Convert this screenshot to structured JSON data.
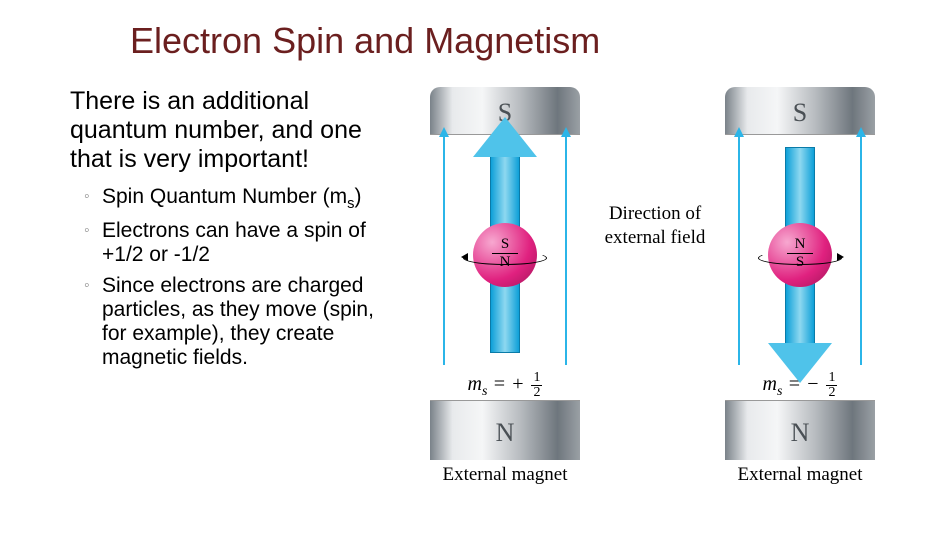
{
  "title": {
    "text": "Electron Spin and Magnetism",
    "color": "#6b1f1f",
    "fontsize": 36
  },
  "intro": "There is an additional quantum number, and one that is very important!",
  "bullets": [
    {
      "html": "Spin Quantum Number (m<sub>s</sub>)"
    },
    {
      "html": "Electrons can have a spin of +1/2 or -1/2"
    },
    {
      "html": "Since electrons are charged particles, as they move (spin, for example), they create magnetic fields."
    }
  ],
  "diagram": {
    "direction_label": "Direction of external field",
    "arrow_color": "#2bb5e8",
    "big_arrow_fill": "#4fc3ea",
    "electron_color": "#e0217f",
    "left": {
      "top_pole": "S",
      "bottom_pole": "N",
      "electron_top": "S",
      "electron_bottom": "N",
      "arrow_dir": "up",
      "ms_sign": "+",
      "ms_num": "1",
      "ms_den": "2",
      "caption": "External magnet"
    },
    "right": {
      "top_pole": "S",
      "bottom_pole": "N",
      "electron_top": "N",
      "electron_bottom": "S",
      "arrow_dir": "down",
      "ms_sign": "−",
      "ms_num": "1",
      "ms_den": "2",
      "caption": "External magnet"
    }
  }
}
